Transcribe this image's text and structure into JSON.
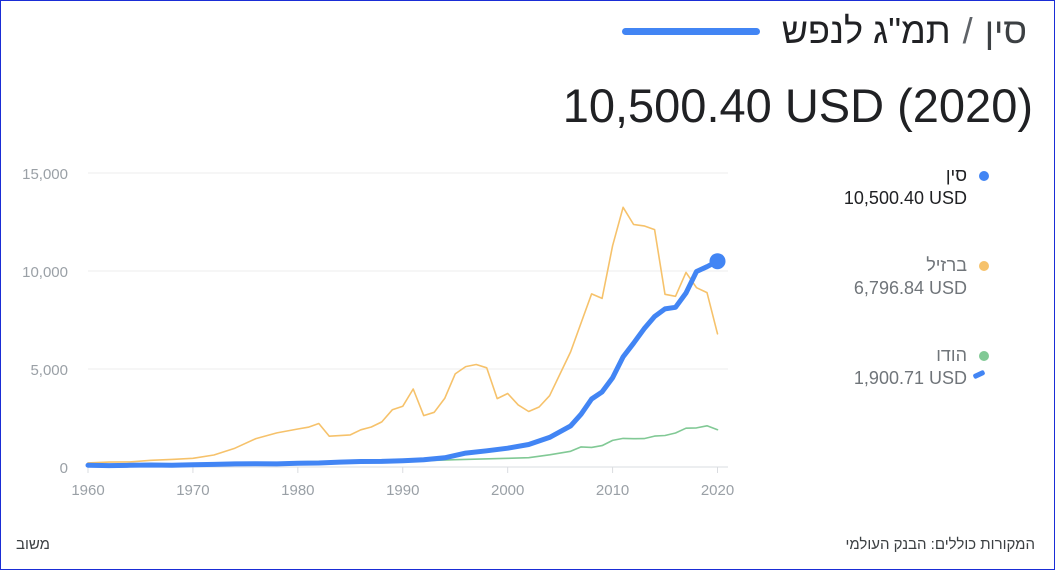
{
  "header": {
    "country": "סין",
    "separator": "/",
    "metric": "תמ\"ג לנפש",
    "accent_color": "#4285f4"
  },
  "headline": "10,500.40 USD (2020)",
  "legend": [
    {
      "name": "סין",
      "value": "10,500.40 USD",
      "color": "#4285f4",
      "active": true
    },
    {
      "name": "ברזיל",
      "value": "6,796.84 USD",
      "color": "#f6c26b",
      "active": false
    },
    {
      "name": "הודו",
      "value": "1,900.71 USD",
      "color": "#81c995",
      "active": false
    }
  ],
  "footer": {
    "sources": "המקורות כוללים: הבנק העולמי",
    "feedback": "משוב"
  },
  "chart_data": {
    "type": "line",
    "title": "",
    "xlabel": "",
    "ylabel": "",
    "xlim": [
      1960,
      2021
    ],
    "ylim": [
      0,
      15000
    ],
    "x_ticks": [
      1960,
      1970,
      1980,
      1990,
      2000,
      2010,
      2020
    ],
    "y_ticks": [
      0,
      5000,
      10000,
      15000
    ],
    "x_tick_labels": [
      "1960",
      "1970",
      "1980",
      "1990",
      "2000",
      "2010",
      "2020"
    ],
    "y_tick_labels": [
      "0",
      "5,000",
      "10,000",
      "15,000"
    ],
    "grid": true,
    "legend_position": "right",
    "series": [
      {
        "name": "סין",
        "color": "#4285f4",
        "highlight": true,
        "x": [
          1960,
          1962,
          1964,
          1966,
          1968,
          1970,
          1972,
          1974,
          1976,
          1978,
          1980,
          1982,
          1984,
          1986,
          1988,
          1990,
          1992,
          1994,
          1996,
          1998,
          2000,
          2002,
          2004,
          2006,
          2007,
          2008,
          2009,
          2010,
          2011,
          2012,
          2013,
          2014,
          2015,
          2016,
          2017,
          2018,
          2019,
          2020
        ],
        "y": [
          89,
          70,
          85,
          101,
          90,
          113,
          132,
          157,
          165,
          156,
          195,
          203,
          251,
          282,
          284,
          318,
          366,
          471,
          709,
          829,
          959,
          1149,
          1509,
          2099,
          2694,
          3468,
          3832,
          4550,
          5618,
          6317,
          7051,
          7679,
          8067,
          8148,
          8879,
          9977,
          10217,
          10500
        ]
      },
      {
        "name": "ברזיל",
        "color": "#f6c26b",
        "highlight": false,
        "x": [
          1960,
          1962,
          1964,
          1966,
          1968,
          1970,
          1972,
          1974,
          1976,
          1978,
          1980,
          1981,
          1982,
          1983,
          1985,
          1986,
          1987,
          1988,
          1989,
          1990,
          1991,
          1992,
          1993,
          1994,
          1995,
          1996,
          1997,
          1998,
          1999,
          2000,
          2001,
          2002,
          2003,
          2004,
          2006,
          2008,
          2009,
          2010,
          2011,
          2012,
          2013,
          2014,
          2015,
          2016,
          2017,
          2018,
          2019,
          2020
        ],
        "y": [
          210,
          250,
          260,
          340,
          390,
          445,
          610,
          960,
          1450,
          1740,
          1940,
          2030,
          2220,
          1570,
          1640,
          1900,
          2040,
          2300,
          2920,
          3100,
          3980,
          2620,
          2790,
          3500,
          4750,
          5120,
          5230,
          5060,
          3490,
          3750,
          3170,
          2830,
          3060,
          3640,
          5870,
          8830,
          8600,
          11290,
          13250,
          12370,
          12300,
          12110,
          8810,
          8710,
          9930,
          9150,
          8900,
          6797
        ]
      },
      {
        "name": "הודו",
        "color": "#81c995",
        "highlight": false,
        "x": [
          1960,
          1965,
          1970,
          1975,
          1980,
          1985,
          1990,
          1991,
          1995,
          2000,
          2002,
          2004,
          2006,
          2007,
          2008,
          2009,
          2010,
          2011,
          2012,
          2013,
          2014,
          2015,
          2016,
          2017,
          2018,
          2019,
          2020
        ],
        "y": [
          82,
          119,
          112,
          158,
          266,
          296,
          368,
          303,
          374,
          443,
          476,
          624,
          802,
          1023,
          1000,
          1090,
          1358,
          1458,
          1444,
          1450,
          1574,
          1606,
          1733,
          1981,
          1997,
          2100,
          1901
        ]
      }
    ]
  }
}
